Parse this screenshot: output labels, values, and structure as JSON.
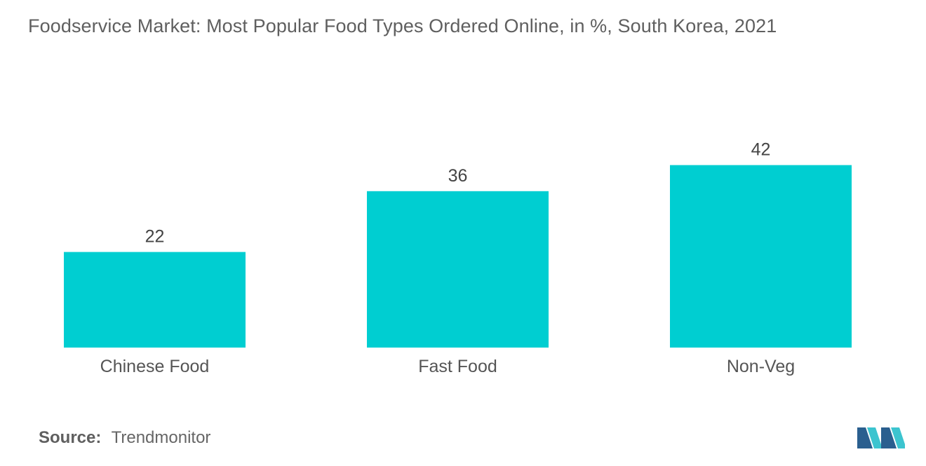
{
  "title": "Foodservice Market: Most Popular Food Types Ordered Online, in %, South Korea, 2021",
  "source": {
    "label": "Source:",
    "value": "Trendmonitor"
  },
  "colors": {
    "bar": "#00ced1",
    "logo_dark": "#2a5f8f",
    "logo_light": "#3cc4cf"
  },
  "chart_data": {
    "type": "bar",
    "title": "Foodservice Market: Most Popular Food Types Ordered Online, in %, South Korea, 2021",
    "categories": [
      "Chinese Food",
      "Fast Food",
      "Non-Veg"
    ],
    "values": [
      22,
      36,
      42
    ],
    "data_labels": [
      "22",
      "36",
      "42"
    ],
    "xlabel": "",
    "ylabel": "",
    "ylim": [
      0,
      50
    ],
    "grid": false,
    "legend": "none"
  }
}
